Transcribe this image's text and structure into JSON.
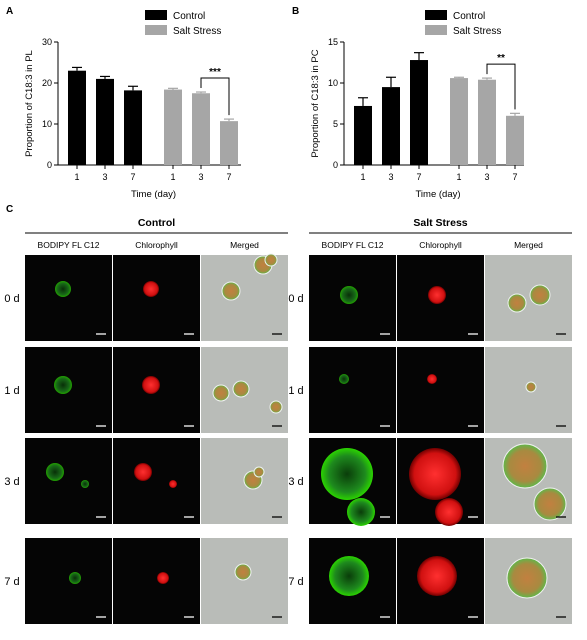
{
  "panels": {
    "a": "A",
    "b": "B",
    "c": "C"
  },
  "colors": {
    "control": "#000000",
    "salt": "#a6a6a6",
    "green": "#2bd400",
    "red": "#ff1a1a"
  },
  "chart_data": [
    {
      "type": "bar",
      "ylabel": "Proportion of C18:3 in PL",
      "xlabel": "Time (day)",
      "ylim": [
        0,
        30
      ],
      "yticks": [
        0,
        10,
        20,
        30
      ],
      "categories": [
        "1",
        "3",
        "7"
      ],
      "series": [
        {
          "name": "Control",
          "values": [
            23.0,
            21.0,
            18.2
          ],
          "errors": [
            0.8,
            0.6,
            1.0
          ]
        },
        {
          "name": "Salt Stress",
          "values": [
            18.4,
            17.5,
            10.7
          ],
          "errors": [
            0.3,
            0.3,
            0.5
          ]
        }
      ],
      "significance": {
        "label": "***",
        "between": [
          "3",
          "7"
        ],
        "series": "Salt Stress"
      },
      "legend": "top-right"
    },
    {
      "type": "bar",
      "ylabel": "Proportion of C18:3 in PC",
      "xlabel": "Time (day)",
      "ylim": [
        0,
        15
      ],
      "yticks": [
        0,
        5,
        10,
        15
      ],
      "categories": [
        "1",
        "3",
        "7"
      ],
      "series": [
        {
          "name": "Control",
          "values": [
            7.2,
            9.5,
            12.8
          ],
          "errors": [
            1.0,
            1.2,
            0.9
          ]
        },
        {
          "name": "Salt Stress",
          "values": [
            10.6,
            10.4,
            6.0
          ],
          "errors": [
            0.1,
            0.2,
            0.3
          ]
        }
      ],
      "significance": {
        "label": "**",
        "between": [
          "3",
          "7"
        ],
        "series": "Salt Stress"
      },
      "legend": "top-right"
    }
  ],
  "microscopy": {
    "conditions": [
      "Control",
      "Salt Stress"
    ],
    "channels": [
      "BODIPY FL C12",
      "Chlorophyll",
      "Merged"
    ],
    "rows": [
      "0 d",
      "1 d",
      "3 d",
      "7 d"
    ]
  }
}
